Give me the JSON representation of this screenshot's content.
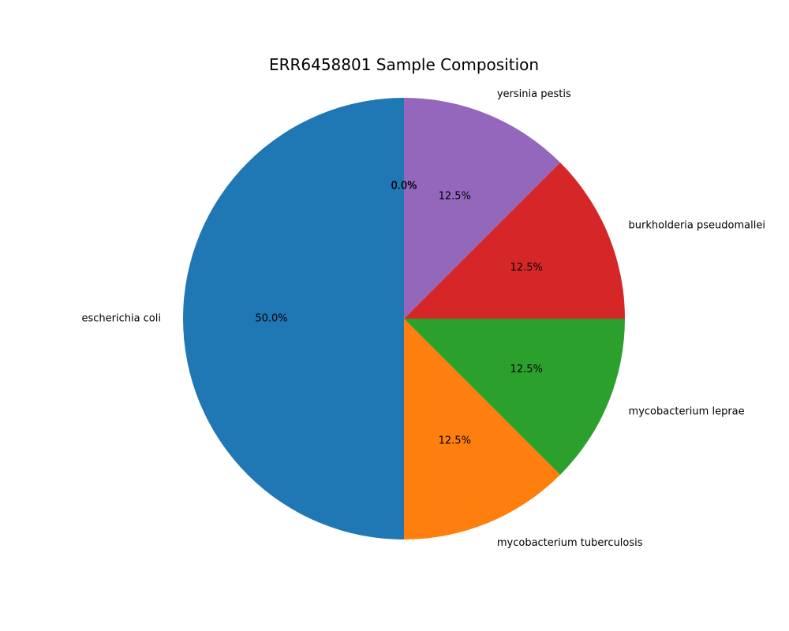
{
  "chart_data": {
    "type": "pie",
    "title": "ERR6458801 Sample Composition",
    "start_angle_deg": 90,
    "direction": "counterclockwise",
    "slices": [
      {
        "label": "escherichia coli",
        "value": 50.0,
        "pct_text": "50.0%",
        "color": "#1f77b4"
      },
      {
        "label": "mycobacterium tuberculosis",
        "value": 12.5,
        "pct_text": "12.5%",
        "color": "#ff7f0e"
      },
      {
        "label": "mycobacterium leprae",
        "value": 12.5,
        "pct_text": "12.5%",
        "color": "#2ca02c"
      },
      {
        "label": "burkholderia pseudomallei",
        "value": 12.5,
        "pct_text": "12.5%",
        "color": "#d62728"
      },
      {
        "label": "yersinia pestis",
        "value": 12.5,
        "pct_text": "12.5%",
        "color": "#9467bd"
      },
      {
        "label": "",
        "value": 0.0,
        "pct_text": "0.0%",
        "color": "#8c564b"
      },
      {
        "label": "",
        "value": 0.0,
        "pct_text": "0.0%",
        "color": "#e377c2"
      },
      {
        "label": "",
        "value": 0.0,
        "pct_text": "0.0%",
        "color": "#7f7f7f"
      },
      {
        "label": "",
        "value": 0.0,
        "pct_text": "0.0%",
        "color": "#bcbd22"
      },
      {
        "label": "",
        "value": 0.0,
        "pct_text": "0.0%",
        "color": "#17becf"
      }
    ]
  }
}
